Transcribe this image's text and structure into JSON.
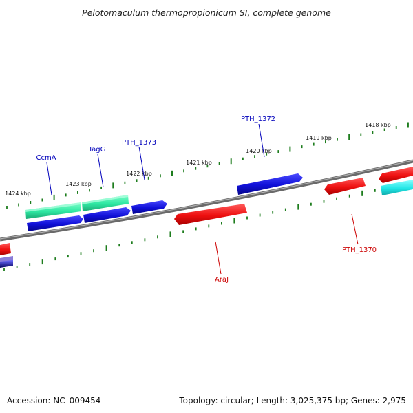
{
  "header": {
    "title": "Pelotomaculum thermopropionicum SI, complete genome"
  },
  "footer": {
    "accession": "Accession: NC_009454",
    "summary": "Topology: circular; Length: 3,025,375 bp; Genes: 2,975"
  },
  "colors": {
    "backbone": "#808080",
    "tick": "#1e7d1e",
    "forward_gene": "#1010d8",
    "forward_label": "#0000bb",
    "reverse_gene": "#ee1010",
    "reverse_label": "#cc0000",
    "rna_gene": "#2ee8a2",
    "cyan_gene": "#20e6e6"
  },
  "ruler": {
    "kbp_labels": [
      {
        "kbp": 1424,
        "text": "1424 kbp"
      },
      {
        "kbp": 1423,
        "text": "1423 kbp"
      },
      {
        "kbp": 1422,
        "text": "1422 kbp"
      },
      {
        "kbp": 1421,
        "text": "1421 kbp"
      },
      {
        "kbp": 1420,
        "text": "1420 kbp"
      },
      {
        "kbp": 1419,
        "text": "1419 kbp"
      },
      {
        "kbp": 1418,
        "text": "1418 kbp"
      }
    ]
  },
  "genes": {
    "labeled": [
      {
        "name": "CcmA",
        "strand": "forward",
        "color": "#0000bb"
      },
      {
        "name": "TagG",
        "strand": "forward",
        "color": "#0000bb"
      },
      {
        "name": "PTH_1373",
        "strand": "forward",
        "color": "#0000bb"
      },
      {
        "name": "PTH_1372",
        "strand": "forward",
        "color": "#0000bb"
      },
      {
        "name": "AraJ",
        "strand": "reverse",
        "color": "#cc0000"
      },
      {
        "name": "PTH_1370",
        "strand": "reverse",
        "color": "#cc0000"
      }
    ]
  }
}
